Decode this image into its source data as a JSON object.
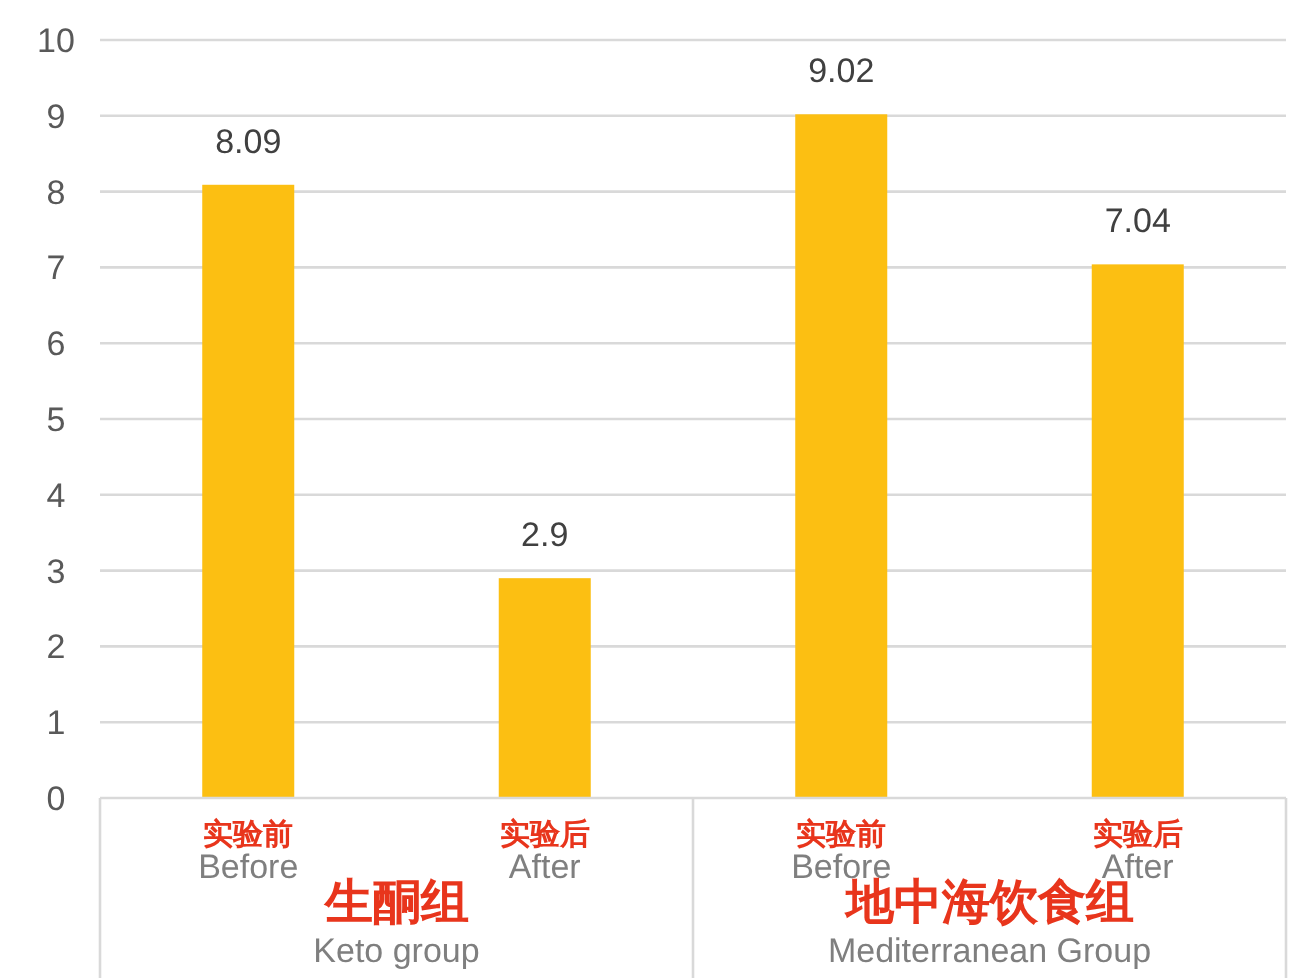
{
  "chart_data": {
    "type": "bar",
    "categories": [
      "实验前\nBefore",
      "实验后\nAfter",
      "实验前\nBefore",
      "实验后\nAfter"
    ],
    "values": [
      8.09,
      2.9,
      9.02,
      7.04
    ],
    "color": "#fcbf12",
    "ylim": [
      0,
      10
    ],
    "yticks": [
      0,
      1,
      2,
      3,
      4,
      5,
      6,
      7,
      8,
      9,
      10
    ],
    "grid": "y",
    "data_labels": true,
    "annotations": [
      "生酮组",
      "Keto group",
      "地中海饮食组",
      "Mediterranean Group"
    ]
  }
}
